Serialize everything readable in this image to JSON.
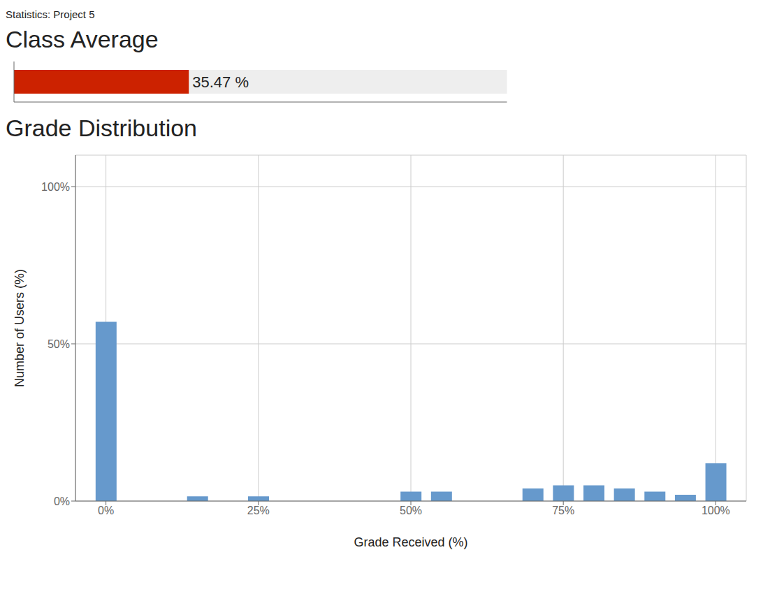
{
  "chart_data": [
    {
      "type": "bar",
      "orientation": "horizontal",
      "title": "Statistics: Project 5",
      "subtitle": "Class Average",
      "categories": [
        null
      ],
      "values": [
        35.47
      ],
      "value_labels": [
        "35.47 %"
      ],
      "data_labels": true,
      "color": "#cc2200",
      "xlim": [
        0,
        100
      ],
      "tick_labels": false
    },
    {
      "type": "bar",
      "title": "Grade Distribution",
      "x_label": "Grade Received (%)",
      "y_label": "Number of Users (%)",
      "x": [
        0,
        5,
        10,
        15,
        20,
        25,
        30,
        35,
        40,
        45,
        50,
        55,
        60,
        65,
        70,
        75,
        80,
        85,
        90,
        95,
        100
      ],
      "values": [
        57,
        0,
        0,
        1.5,
        0,
        1.5,
        0,
        0,
        0,
        0,
        3,
        3,
        0,
        0,
        4,
        5,
        5,
        4,
        3,
        2,
        12
      ],
      "color": "#6699cc",
      "xlim": [
        -5,
        105
      ],
      "xticks": [
        {
          "value": 0,
          "label": "0%"
        },
        {
          "value": 25,
          "label": "25%"
        },
        {
          "value": 50,
          "label": "50%"
        },
        {
          "value": 75,
          "label": "75%"
        },
        {
          "value": 100,
          "label": "100%"
        }
      ],
      "ylim": [
        0,
        110
      ],
      "yticks": [
        {
          "value": 0,
          "label": "0%"
        },
        {
          "value": 50,
          "label": "50%"
        },
        {
          "value": 100,
          "label": "100%"
        }
      ],
      "grid": true
    }
  ]
}
